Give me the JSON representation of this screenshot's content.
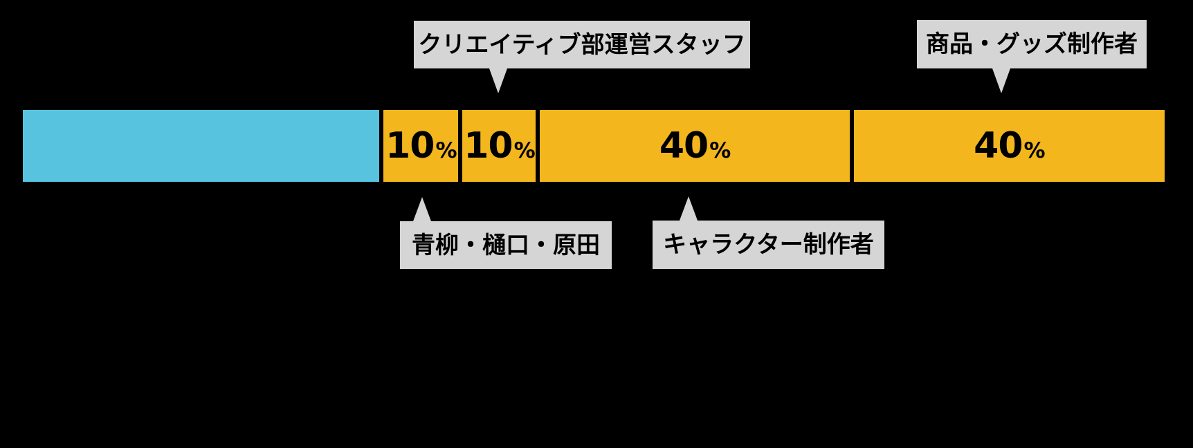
{
  "chart_data": {
    "type": "bar",
    "orientation": "horizontal_stacked",
    "unit": "%",
    "title": "",
    "axes": "none",
    "legend": "none",
    "colors": {
      "lead_segment": "#57C3DF",
      "yellow_segment": "#F3B61D",
      "callout_bg": "#D5D5D5",
      "background": "#000000",
      "text": "#000000"
    },
    "segments": [
      {
        "name": "blue-lead-segment",
        "display_number": "",
        "display_unit": "",
        "value": null,
        "share_weight": 515,
        "color": "#57C3DF",
        "callout": null
      },
      {
        "name": "founders-segment",
        "display_number": "10",
        "display_unit": "%",
        "value": 10,
        "share_weight": 108,
        "color": "#F3B61D",
        "callout": "青柳・樋口・原田",
        "callout_side": "below"
      },
      {
        "name": "creative-dept-staff-segment",
        "display_number": "10",
        "display_unit": "%",
        "value": 10,
        "share_weight": 106,
        "color": "#F3B61D",
        "callout": "クリエイティブ部運営スタッフ",
        "callout_side": "above"
      },
      {
        "name": "character-creators-segment",
        "display_number": "40",
        "display_unit": "%",
        "value": 40,
        "share_weight": 447,
        "color": "#F3B61D",
        "callout": "キャラクター制作者",
        "callout_side": "below"
      },
      {
        "name": "goods-creators-segment",
        "display_number": "40",
        "display_unit": "%",
        "value": 40,
        "share_weight": 449,
        "color": "#F3B61D",
        "callout": "商品・グッズ制作者",
        "callout_side": "above"
      }
    ]
  }
}
